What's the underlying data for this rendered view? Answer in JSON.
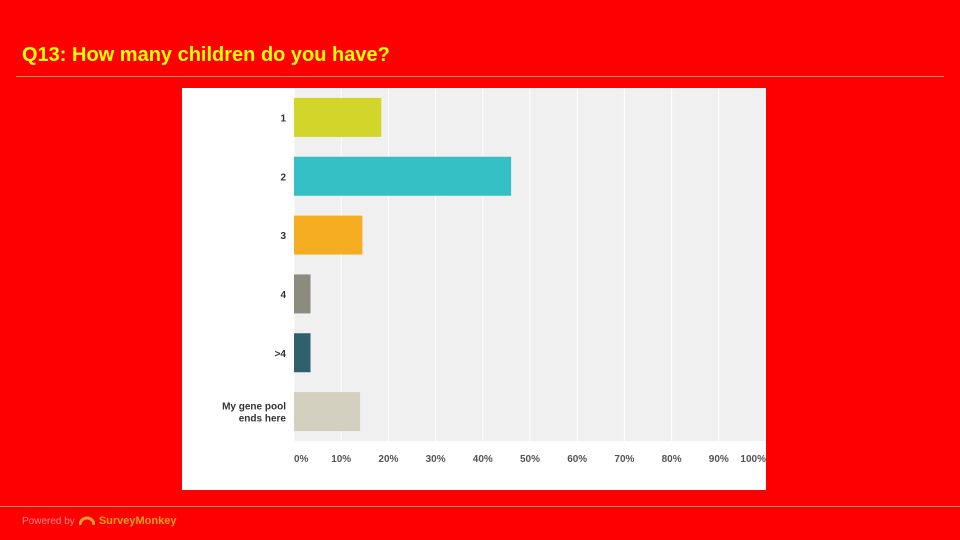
{
  "slide": {
    "title": "Q13: How many children do you have?"
  },
  "footer": {
    "powered_by": "Powered by",
    "brand": "SurveyMonkey",
    "logo_icon": "surveymonkey-logo-icon"
  },
  "colors": {
    "background": "#ff0000",
    "title": "#ffff00",
    "plot_bg": "#f0f0f0"
  },
  "chart_data": {
    "type": "bar",
    "orientation": "horizontal",
    "categories": [
      "1",
      "2",
      "3",
      "4",
      ">4",
      "My gene pool ends here"
    ],
    "values": [
      18.5,
      46.0,
      14.5,
      3.5,
      3.5,
      14.0
    ],
    "value_unit": "%",
    "colors": [
      "#d2d62a",
      "#33bfc4",
      "#f5ad22",
      "#8c8c7e",
      "#30606c",
      "#d3d0c0"
    ],
    "xlim": [
      0,
      100
    ],
    "xticks": [
      "0%",
      "10%",
      "20%",
      "30%",
      "40%",
      "50%",
      "60%",
      "70%",
      "80%",
      "90%",
      "100%"
    ],
    "grid": true,
    "legend": "none"
  }
}
